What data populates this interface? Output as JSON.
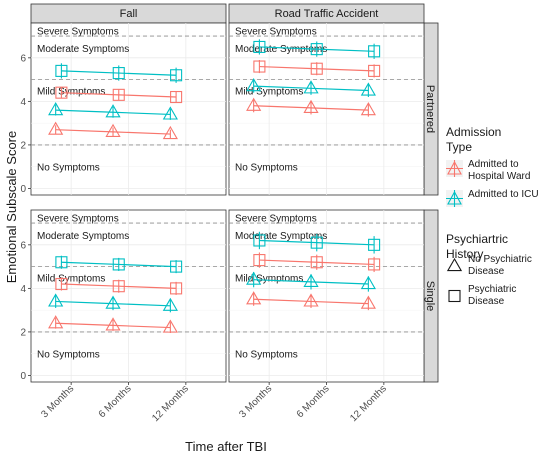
{
  "chart_data": {
    "type": "line",
    "xlabel": "Time after TBI",
    "ylabel": "Emotional Subscale Score",
    "x": [
      "3 Months",
      "6 Months",
      "12 Months"
    ],
    "ylim": [
      -0.3,
      7.6
    ],
    "yticks": [
      0,
      2,
      4,
      6
    ],
    "grid": true,
    "facet_columns": [
      "Fall",
      "Road Traffic Accident"
    ],
    "facet_rows": [
      "Partnered",
      "Single"
    ],
    "symptom_cutoffs": [
      2,
      5,
      7
    ],
    "symptom_labels": [
      {
        "label": "Severe Symptoms",
        "y": 7.25
      },
      {
        "label": "Moderate Symptoms",
        "y": 6.45
      },
      {
        "label": "Mild Symptoms",
        "y": 4.5
      },
      {
        "label": "No Symptoms",
        "y": 1.0
      }
    ],
    "legend": {
      "position": "right",
      "color_title": "Admission Type",
      "color_entries": [
        {
          "label": "Admitted to Hospital Ward",
          "color": "#F8766D"
        },
        {
          "label": "Admitted to ICU",
          "color": "#00BFC4"
        }
      ],
      "shape_title": "Psychiartric History",
      "shape_entries": [
        {
          "label": "No Psychiatric Disease",
          "shape": "triangle"
        },
        {
          "label": "Psychiatric Disease",
          "shape": "square"
        }
      ]
    },
    "panels": [
      {
        "column": "Fall",
        "row": "Partnered",
        "series": [
          {
            "admission": "Admitted to ICU",
            "history": "Psychiatric Disease",
            "values": [
              5.4,
              5.3,
              5.2
            ],
            "err": [
              0.35,
              0.35,
              0.35
            ]
          },
          {
            "admission": "Admitted to Hospital Ward",
            "history": "Psychiatric Disease",
            "values": [
              4.4,
              4.3,
              4.2
            ],
            "err": [
              0.25,
              0.25,
              0.25
            ]
          },
          {
            "admission": "Admitted to ICU",
            "history": "No Psychiatric Disease",
            "values": [
              3.6,
              3.5,
              3.4
            ],
            "err": [
              0.25,
              0.25,
              0.25
            ]
          },
          {
            "admission": "Admitted to Hospital Ward",
            "history": "No Psychiatric Disease",
            "values": [
              2.7,
              2.6,
              2.5
            ],
            "err": [
              0.2,
              0.2,
              0.2
            ]
          }
        ]
      },
      {
        "column": "Road Traffic Accident",
        "row": "Partnered",
        "series": [
          {
            "admission": "Admitted to ICU",
            "history": "Psychiatric Disease",
            "values": [
              6.5,
              6.4,
              6.3
            ],
            "err": [
              0.35,
              0.35,
              0.35
            ]
          },
          {
            "admission": "Admitted to Hospital Ward",
            "history": "Psychiatric Disease",
            "values": [
              5.6,
              5.5,
              5.4
            ],
            "err": [
              0.3,
              0.3,
              0.3
            ]
          },
          {
            "admission": "Admitted to ICU",
            "history": "No Psychiatric Disease",
            "values": [
              4.7,
              4.6,
              4.5
            ],
            "err": [
              0.3,
              0.3,
              0.3
            ]
          },
          {
            "admission": "Admitted to Hospital Ward",
            "history": "No Psychiatric Disease",
            "values": [
              3.8,
              3.7,
              3.6
            ],
            "err": [
              0.3,
              0.3,
              0.3
            ]
          }
        ]
      },
      {
        "column": "Fall",
        "row": "Single",
        "series": [
          {
            "admission": "Admitted to ICU",
            "history": "Psychiatric Disease",
            "values": [
              5.2,
              5.1,
              5.0
            ],
            "err": [
              0.3,
              0.3,
              0.3
            ]
          },
          {
            "admission": "Admitted to Hospital Ward",
            "history": "Psychiatric Disease",
            "values": [
              4.2,
              4.1,
              4.0
            ],
            "err": [
              0.3,
              0.3,
              0.3
            ]
          },
          {
            "admission": "Admitted to ICU",
            "history": "No Psychiatric Disease",
            "values": [
              3.4,
              3.3,
              3.2
            ],
            "err": [
              0.3,
              0.3,
              0.3
            ]
          },
          {
            "admission": "Admitted to Hospital Ward",
            "history": "No Psychiatric Disease",
            "values": [
              2.4,
              2.3,
              2.2
            ],
            "err": [
              0.25,
              0.25,
              0.25
            ]
          }
        ]
      },
      {
        "column": "Road Traffic Accident",
        "row": "Single",
        "series": [
          {
            "admission": "Admitted to ICU",
            "history": "Psychiatric Disease",
            "values": [
              6.2,
              6.1,
              6.0
            ],
            "err": [
              0.4,
              0.4,
              0.4
            ]
          },
          {
            "admission": "Admitted to Hospital Ward",
            "history": "Psychiatric Disease",
            "values": [
              5.3,
              5.2,
              5.1
            ],
            "err": [
              0.35,
              0.35,
              0.35
            ]
          },
          {
            "admission": "Admitted to ICU",
            "history": "No Psychiatric Disease",
            "values": [
              4.4,
              4.3,
              4.2
            ],
            "err": [
              0.35,
              0.35,
              0.35
            ]
          },
          {
            "admission": "Admitted to Hospital Ward",
            "history": "No Psychiatric Disease",
            "values": [
              3.5,
              3.4,
              3.3
            ],
            "err": [
              0.3,
              0.3,
              0.3
            ]
          }
        ]
      }
    ]
  }
}
